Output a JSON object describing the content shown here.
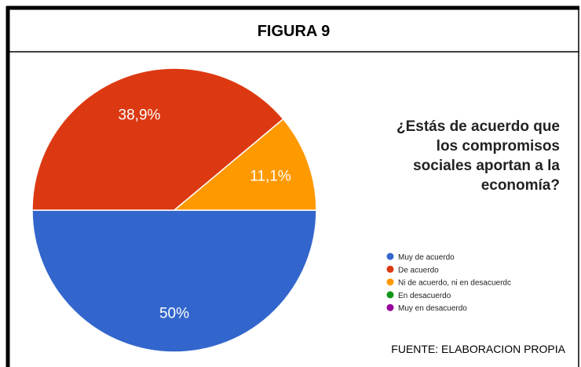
{
  "header": {
    "title": "FIGURA 9"
  },
  "chart_data": {
    "type": "pie",
    "title": [
      "¿Estás de acuerdo que",
      "los compromisos",
      "sociales aportan a la",
      "economía?"
    ],
    "categories": [
      "Muy de acuerdo",
      "De acuerdo",
      "Ni de acuerdo, ni en desacuerdc",
      "En desacuerdo",
      "Muy en desacuerdo"
    ],
    "values": [
      50,
      38.9,
      11.1,
      0,
      0
    ],
    "value_labels": [
      "50%",
      "38,9%",
      "11,1%",
      null,
      null
    ],
    "colors": [
      "#3366cc",
      "#dc3912",
      "#ff9900",
      "#109618",
      "#990099"
    ],
    "legend": "right"
  },
  "footer": {
    "source": "FUENTE: ELABORACION PROPIA"
  }
}
